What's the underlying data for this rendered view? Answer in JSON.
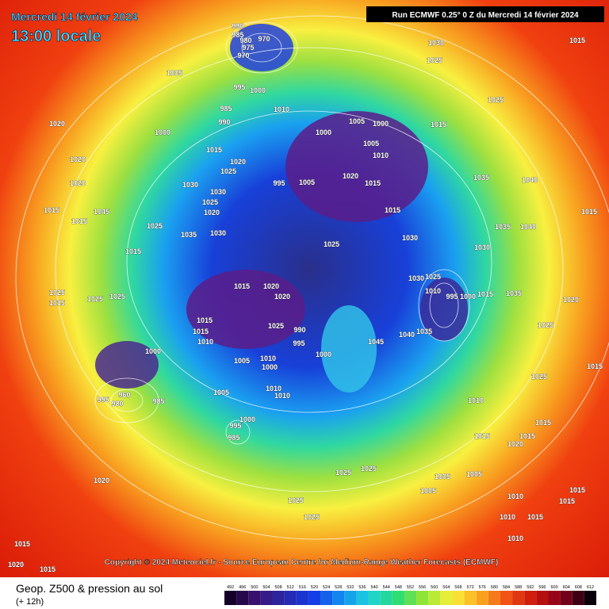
{
  "header": {
    "date": "Mercredi 14 février 2024",
    "time": "13:00 locale",
    "run": "Run ECMWF 0.25° 0 Z du Mercredi 14 février 2024"
  },
  "copyright": "Copyright © 2024 Meteociel.fr - Source European Centre for Medium-Range Weather Forecasts (ECMWF)",
  "footer": {
    "title": "Geop. Z500 & pression au sol",
    "lead": "(+ 12h)"
  },
  "scale": [
    492,
    496,
    500,
    504,
    508,
    512,
    516,
    520,
    524,
    528,
    532,
    536,
    540,
    544,
    548,
    552,
    556,
    560,
    564,
    568,
    572,
    576,
    580,
    584,
    588,
    592,
    596,
    600,
    604,
    608,
    612
  ],
  "isobar_labels": [
    990,
    985,
    980,
    970,
    975,
    970,
    1005,
    995,
    1000,
    985,
    990,
    1010,
    1005,
    1000,
    1000,
    1005,
    1010,
    1015,
    1025,
    1030,
    1025,
    1015,
    1020,
    1000,
    1015,
    1020,
    1025,
    1020,
    1020,
    1030,
    1030,
    1025,
    1020,
    995,
    1005,
    1020,
    1015,
    1035,
    1040,
    1015,
    1015,
    1025,
    1035,
    1030,
    1030,
    1025,
    1035,
    1040,
    1045,
    1015,
    1015,
    1015,
    1015,
    1020,
    1020,
    1030,
    1030,
    1025,
    1010,
    995,
    1000,
    1015,
    1035,
    1020,
    1025,
    1025,
    1025,
    1015,
    1015,
    1015,
    1010,
    1025,
    990,
    995,
    1045,
    1040,
    1035,
    1000,
    1000,
    1010,
    1000,
    1005,
    1025,
    1015,
    1025,
    1005,
    1010,
    1010,
    960,
    995,
    980,
    985,
    1000,
    995,
    985,
    1010,
    1015,
    1015,
    1015,
    1020,
    1020,
    1025,
    1025,
    1005,
    1005,
    1005,
    1010,
    1025,
    1025,
    1010,
    1015,
    1015,
    1010,
    1020,
    1015,
    1015,
    1015
  ]
}
